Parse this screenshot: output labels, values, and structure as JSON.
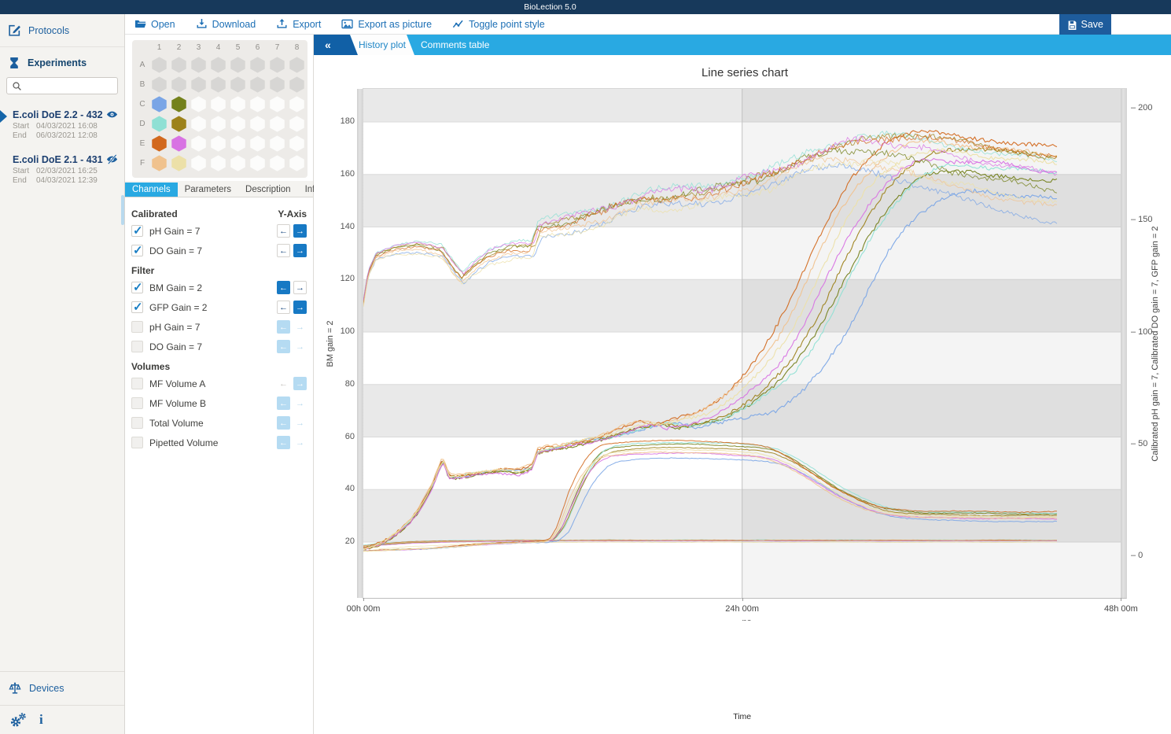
{
  "app": {
    "title": "BioLection 5.0"
  },
  "colors": {
    "accent_dark_blue": "#1c5f9e",
    "bright_blue": "#29a9e2",
    "button_blue": "#1779c4",
    "titlebar": "#17395b"
  },
  "sidebar": {
    "protocols_label": "Protocols",
    "experiments_label": "Experiments",
    "search_placeholder": "",
    "experiments": [
      {
        "name": "E.coli DoE 2.2 - 432",
        "start_label": "Start",
        "start": "04/03/2021 16:08",
        "end_label": "End",
        "end": "06/03/2021 12:08",
        "visible": true,
        "selected": true
      },
      {
        "name": "E.coli DoE 2.1 - 431",
        "start_label": "Start",
        "start": "02/03/2021 16:25",
        "end_label": "End",
        "end": "04/03/2021 12:39",
        "visible": false,
        "selected": false
      }
    ],
    "devices_label": "Devices"
  },
  "toolbar": {
    "items": [
      {
        "label": "Open",
        "icon": "folder-icon"
      },
      {
        "label": "Download",
        "icon": "download-icon"
      },
      {
        "label": "Export",
        "icon": "export-icon"
      },
      {
        "label": "Export as picture",
        "icon": "image-icon"
      },
      {
        "label": "Toggle point style",
        "icon": "line-chart-icon"
      }
    ],
    "save": {
      "label": "Save",
      "icon": "save-icon"
    }
  },
  "plate": {
    "columns": [
      "1",
      "2",
      "3",
      "4",
      "5",
      "6",
      "7",
      "8"
    ],
    "rows": [
      {
        "label": "A",
        "cells": [
          "disabled",
          "disabled",
          "disabled",
          "disabled",
          "disabled",
          "disabled",
          "disabled",
          "disabled"
        ]
      },
      {
        "label": "B",
        "cells": [
          "disabled",
          "disabled",
          "disabled",
          "disabled",
          "disabled",
          "disabled",
          "disabled",
          "disabled"
        ]
      },
      {
        "label": "C",
        "cells": [
          "#7aa5e6",
          "#74811c",
          "empty",
          "empty",
          "empty",
          "empty",
          "empty",
          "empty"
        ]
      },
      {
        "label": "D",
        "cells": [
          "#8fe0d4",
          "#9d821b",
          "empty",
          "empty",
          "empty",
          "empty",
          "empty",
          "empty"
        ]
      },
      {
        "label": "E",
        "cells": [
          "#d2691e",
          "#d873e3",
          "empty",
          "empty",
          "empty",
          "empty",
          "empty",
          "empty"
        ]
      },
      {
        "label": "F",
        "cells": [
          "#f0c28e",
          "#ece0a8",
          "empty",
          "empty",
          "empty",
          "empty",
          "empty",
          "empty"
        ]
      }
    ]
  },
  "panel_tabs": [
    {
      "label": "Channels",
      "active": true
    },
    {
      "label": "Parameters",
      "active": false
    },
    {
      "label": "Description",
      "active": false
    },
    {
      "label": "Info",
      "active": false
    }
  ],
  "channels": {
    "yaxis_label": "Y-Axis",
    "sections": [
      {
        "title": "Calibrated",
        "rows": [
          {
            "label": "pH Gain = 7",
            "checked": true,
            "left": "off",
            "right": "on"
          },
          {
            "label": "DO Gain = 7",
            "checked": true,
            "left": "off",
            "right": "on"
          }
        ]
      },
      {
        "title": "Filter",
        "rows": [
          {
            "label": "BM Gain = 2",
            "checked": true,
            "left": "on",
            "right": "off"
          },
          {
            "label": "GFP Gain = 2",
            "checked": true,
            "left": "off",
            "right": "on"
          },
          {
            "label": "pH Gain = 7",
            "checked": false,
            "left": "disblue",
            "right": "dispale"
          },
          {
            "label": "DO Gain = 7",
            "checked": false,
            "left": "disblue",
            "right": "dispale"
          }
        ]
      },
      {
        "title": "Volumes",
        "rows": [
          {
            "label": "MF Volume A",
            "checked": false,
            "left": "disgray",
            "right": "disblue"
          },
          {
            "label": "MF Volume B",
            "checked": false,
            "left": "disblue",
            "right": "dispale"
          },
          {
            "label": "Total Volume",
            "checked": false,
            "left": "disblue",
            "right": "dispale"
          },
          {
            "label": "Pipetted Volume",
            "checked": false,
            "left": "disblue",
            "right": "dispale"
          }
        ]
      }
    ]
  },
  "view_tabs": {
    "collapse": "«",
    "tabs": [
      {
        "label": "History plot",
        "active": true
      },
      {
        "label": "Comments table",
        "active": false
      }
    ]
  },
  "chart_data": {
    "type": "line",
    "title": "Line series chart",
    "x_label": "Time",
    "x_label_secondary": "Time",
    "x_unit": "hours",
    "x_range": [
      0,
      48
    ],
    "x_data_end_hour": 44,
    "x_ticks": [
      {
        "hour": 0,
        "label": "00h 00m"
      },
      {
        "hour": 24,
        "label": "24h 00m"
      },
      {
        "hour": 48,
        "label": "48h 00m"
      }
    ],
    "highlight_from_hour": 24,
    "left_axis": {
      "label": "BM gain = 2",
      "ticks": [
        20,
        40,
        60,
        80,
        100,
        120,
        140,
        160,
        180
      ],
      "range": [
        14,
        192
      ]
    },
    "right_axis": {
      "label": "Calibrated pH gain = 7, Calibrated DO gain = 7, GFP gain = 2",
      "ticks": [
        0,
        50,
        100,
        150,
        200
      ],
      "range": [
        -15,
        209
      ]
    },
    "wells": [
      {
        "id": "C1",
        "color": "#7aa5e6"
      },
      {
        "id": "C2",
        "color": "#74811c"
      },
      {
        "id": "D1",
        "color": "#8fe0d4"
      },
      {
        "id": "D2",
        "color": "#9d821b"
      },
      {
        "id": "E1",
        "color": "#d2691e"
      },
      {
        "id": "E2",
        "color": "#d873e3"
      },
      {
        "id": "F1",
        "color": "#f0c28e"
      },
      {
        "id": "F2",
        "color": "#ece0a8"
      }
    ],
    "groups": [
      {
        "name": "Calibrated pH gain = 7",
        "axis": "right",
        "noise": 0.12,
        "width": 0.9,
        "opacity": 0.75,
        "base": [
          [
            0,
            4.2
          ],
          [
            1,
            5.2
          ],
          [
            3,
            6.1
          ],
          [
            6,
            6.6
          ],
          [
            10,
            7
          ],
          [
            48,
            7
          ]
        ],
        "dv1": [
          0.4,
          -0.2,
          0.7,
          0.1,
          0.5,
          -0.4,
          0.2,
          -2.2
        ],
        "env1": [
          [
            0,
            1
          ],
          [
            10,
            0.35
          ],
          [
            48,
            0.35
          ]
        ],
        "dv2": [
          0,
          0,
          0,
          0,
          0,
          0,
          0,
          0
        ],
        "env2": [
          [
            0,
            0
          ],
          [
            48,
            0
          ]
        ],
        "dt": [
          0,
          0,
          0,
          0,
          0,
          0,
          0,
          0
        ],
        "dt_env": [
          [
            0,
            0
          ],
          [
            48,
            0
          ]
        ],
        "noise_env": [
          [
            0,
            0.6
          ],
          [
            48,
            0.6
          ]
        ]
      },
      {
        "name": "GFP gain = 2",
        "axis": "right",
        "noise": 0.3,
        "width": 1,
        "opacity": 0.9,
        "base": [
          [
            0,
            2.3
          ],
          [
            2,
            2.8
          ],
          [
            4,
            3.4
          ],
          [
            6,
            4.4
          ],
          [
            8,
            5.4
          ],
          [
            10,
            6.1
          ],
          [
            11.5,
            6.5
          ],
          [
            12,
            7.5
          ],
          [
            12.5,
            12
          ],
          [
            13,
            20
          ],
          [
            13.5,
            28
          ],
          [
            14,
            35
          ],
          [
            14.5,
            40
          ],
          [
            15,
            43.5
          ],
          [
            15.7,
            45.5
          ],
          [
            17,
            46.5
          ],
          [
            19,
            47
          ],
          [
            21,
            47
          ],
          [
            23,
            46.5
          ],
          [
            25,
            45.5
          ],
          [
            26,
            44
          ],
          [
            27,
            41
          ],
          [
            28,
            37
          ],
          [
            29,
            32.5
          ],
          [
            30,
            28
          ],
          [
            31,
            24.5
          ],
          [
            32,
            21.5
          ],
          [
            33,
            19.5
          ],
          [
            34,
            18.5
          ],
          [
            35.5,
            17.8
          ],
          [
            38,
            17.5
          ],
          [
            42,
            17.3
          ],
          [
            48,
            17.2
          ]
        ],
        "dv1": [
          -3.2,
          3,
          3.8,
          1.5,
          4.6,
          -1,
          -0.6,
          0.6
        ],
        "env1": [
          [
            0,
            0
          ],
          [
            12,
            0.1
          ],
          [
            15,
            1
          ],
          [
            26,
            1
          ],
          [
            33,
            0.55
          ],
          [
            48,
            0.55
          ]
        ],
        "dv2": [
          0,
          0,
          0,
          0,
          0,
          0,
          0,
          0
        ],
        "env2": [
          [
            0,
            0
          ],
          [
            48,
            0
          ]
        ],
        "dt": [
          0.5,
          0.1,
          0.3,
          0.2,
          -0.4,
          0,
          -0.3,
          -0.1
        ],
        "dt_env": [
          [
            0,
            0
          ],
          [
            11,
            0
          ],
          [
            13,
            1
          ],
          [
            48,
            1
          ]
        ],
        "noise_env": [
          [
            0,
            0.4
          ],
          [
            48,
            0.7
          ]
        ]
      },
      {
        "name": "BM gain = 2",
        "axis": "left",
        "noise": 0.75,
        "width": 1.1,
        "opacity": 0.95,
        "base": [
          [
            0,
            17.5
          ],
          [
            0.5,
            18
          ],
          [
            1,
            19
          ],
          [
            1.5,
            20.5
          ],
          [
            2,
            22.5
          ],
          [
            2.5,
            25
          ],
          [
            3,
            28
          ],
          [
            3.5,
            32
          ],
          [
            4,
            37
          ],
          [
            4.5,
            43
          ],
          [
            4.9,
            49.5
          ],
          [
            5.1,
            50.5
          ],
          [
            5.4,
            45
          ],
          [
            6,
            44.5
          ],
          [
            7,
            45.5
          ],
          [
            8,
            46.3
          ],
          [
            9,
            46.8
          ],
          [
            9.7,
            46.3
          ],
          [
            10.2,
            47
          ],
          [
            10.7,
            48.5
          ],
          [
            11,
            54
          ],
          [
            11.5,
            55
          ],
          [
            12.5,
            56
          ],
          [
            13.5,
            57.5
          ],
          [
            14.5,
            58.5
          ],
          [
            15.5,
            60
          ],
          [
            16.5,
            62
          ],
          [
            17.5,
            63.5
          ],
          [
            18.5,
            64.8
          ],
          [
            19.2,
            64
          ],
          [
            19.6,
            63.5
          ],
          [
            20.5,
            65
          ],
          [
            21.5,
            66.5
          ],
          [
            22.5,
            68.5
          ],
          [
            23.5,
            71.5
          ],
          [
            24.5,
            75
          ],
          [
            25.5,
            80
          ],
          [
            26.5,
            86
          ],
          [
            27.5,
            94
          ],
          [
            28.5,
            104
          ],
          [
            29.5,
            116
          ],
          [
            30.5,
            128
          ],
          [
            31.5,
            139
          ],
          [
            32.5,
            148
          ],
          [
            33.5,
            155
          ],
          [
            34.5,
            160
          ],
          [
            35.5,
            163
          ],
          [
            36.5,
            164
          ],
          [
            38,
            164
          ],
          [
            40,
            163
          ],
          [
            42,
            161.5
          ],
          [
            44,
            160
          ],
          [
            46,
            159
          ],
          [
            48,
            158.5
          ]
        ],
        "dv1": [
          0.5,
          -0.3,
          0.3,
          0,
          0.8,
          -0.5,
          1.2,
          0.6
        ],
        "env1": [
          [
            0,
            0.3
          ],
          [
            5,
            1
          ],
          [
            48,
            1
          ]
        ],
        "dv2": [
          -12,
          -3,
          -1,
          6,
          11,
          2,
          7,
          4
        ],
        "env2": [
          [
            0,
            0
          ],
          [
            22,
            0
          ],
          [
            31,
            1
          ],
          [
            48,
            0.9
          ]
        ],
        "dt": [
          1.5,
          0.4,
          0.9,
          0.6,
          -1.5,
          -0.4,
          -1.2,
          -0.8
        ],
        "dt_env": [
          [
            0,
            0
          ],
          [
            14,
            0
          ],
          [
            20,
            1
          ],
          [
            48,
            1
          ]
        ],
        "noise_env": [
          [
            0,
            0.5
          ],
          [
            20,
            0.7
          ],
          [
            26,
            1
          ],
          [
            48,
            1
          ]
        ]
      },
      {
        "name": "Calibrated DO gain = 7",
        "axis": "right",
        "noise": 1.1,
        "width": 0.9,
        "opacity": 0.8,
        "base": [
          [
            0,
            113
          ],
          [
            0.3,
            126
          ],
          [
            0.8,
            134
          ],
          [
            2,
            137
          ],
          [
            3.5,
            138
          ],
          [
            5,
            136
          ],
          [
            5.8,
            128
          ],
          [
            6.3,
            124
          ],
          [
            7,
            129
          ],
          [
            8,
            134
          ],
          [
            9.5,
            137
          ],
          [
            10.7,
            137
          ],
          [
            11.1,
            146
          ],
          [
            12,
            147
          ],
          [
            13.5,
            149
          ],
          [
            15,
            152
          ],
          [
            16.5,
            156
          ],
          [
            18,
            159
          ],
          [
            19.5,
            160
          ],
          [
            21,
            161
          ],
          [
            22.5,
            163
          ],
          [
            24,
            166
          ],
          [
            25.5,
            168
          ],
          [
            27,
            172
          ],
          [
            28.5,
            177
          ],
          [
            30,
            181
          ],
          [
            31.5,
            183
          ],
          [
            33,
            182
          ],
          [
            34.5,
            180
          ],
          [
            36,
            178
          ],
          [
            38,
            175
          ],
          [
            40,
            172
          ],
          [
            42,
            170
          ],
          [
            44,
            168
          ],
          [
            46,
            166
          ],
          [
            48,
            165
          ]
        ],
        "dv1": [
          -3,
          1,
          4,
          2,
          0,
          3,
          -2,
          -4
        ],
        "env1": [
          [
            0,
            0.4
          ],
          [
            10,
            1
          ],
          [
            48,
            1
          ]
        ],
        "dv2": [
          -18,
          -6,
          5,
          9,
          13,
          0,
          -11,
          -7
        ],
        "env2": [
          [
            0,
            0
          ],
          [
            28,
            0
          ],
          [
            36,
            0.7
          ],
          [
            48,
            1
          ]
        ],
        "dt": [
          0.3,
          -0.2,
          0,
          0.4,
          -0.3,
          0.2,
          -0.4,
          0
        ],
        "dt_env": [
          [
            0,
            0
          ],
          [
            20,
            1
          ],
          [
            48,
            1
          ]
        ],
        "noise_env": [
          [
            0,
            0.3
          ],
          [
            10,
            0.6
          ],
          [
            16,
            1.3
          ],
          [
            34,
            1.3
          ],
          [
            40,
            0.9
          ],
          [
            48,
            0.9
          ]
        ]
      }
    ]
  }
}
